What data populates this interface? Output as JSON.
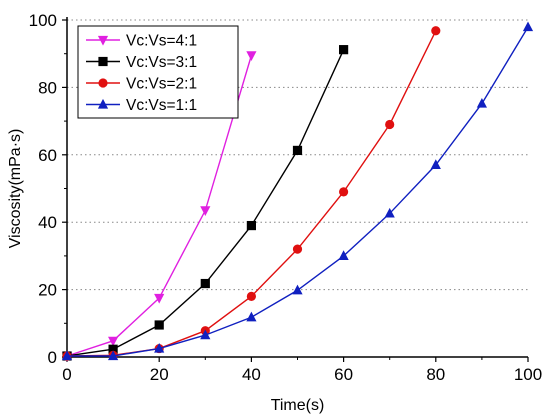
{
  "chart_data": {
    "type": "line",
    "xlabel": "Time(s)",
    "ylabel": "Viscosity(mPa·s)",
    "xlim": [
      0,
      100
    ],
    "ylim": [
      0,
      100
    ],
    "x_ticks": [
      0,
      20,
      40,
      60,
      80,
      100
    ],
    "y_ticks": [
      0,
      20,
      40,
      60,
      80,
      100
    ],
    "grid": "horizontal dotted at y ticks",
    "legend_position": "top-left",
    "series": [
      {
        "name": "Vc:Vs=4:1",
        "color": "#e020e0",
        "marker": "triangle-down",
        "x": [
          0,
          10,
          20,
          30,
          40
        ],
        "y": [
          0.3,
          4.8,
          17.5,
          43.5,
          89.5
        ]
      },
      {
        "name": "Vc:Vs=3:1",
        "color": "#000000",
        "marker": "square",
        "x": [
          0,
          10,
          20,
          30,
          40,
          50,
          60
        ],
        "y": [
          0.3,
          2.3,
          9.5,
          21.8,
          39.0,
          61.3,
          91.2
        ]
      },
      {
        "name": "Vc:Vs=2:1",
        "color": "#e01010",
        "marker": "circle",
        "x": [
          0,
          10,
          20,
          30,
          40,
          50,
          60,
          70,
          80
        ],
        "y": [
          0.3,
          0.5,
          2.5,
          7.8,
          18.0,
          32.0,
          49.0,
          69.0,
          96.8
        ]
      },
      {
        "name": "Vc:Vs=1:1",
        "color": "#1020c0",
        "marker": "triangle-up",
        "x": [
          0,
          10,
          20,
          30,
          40,
          50,
          60,
          70,
          80,
          90,
          100
        ],
        "y": [
          0.3,
          0.3,
          2.5,
          6.5,
          11.8,
          19.8,
          30.0,
          42.6,
          57.0,
          75.2,
          97.9
        ]
      }
    ]
  }
}
